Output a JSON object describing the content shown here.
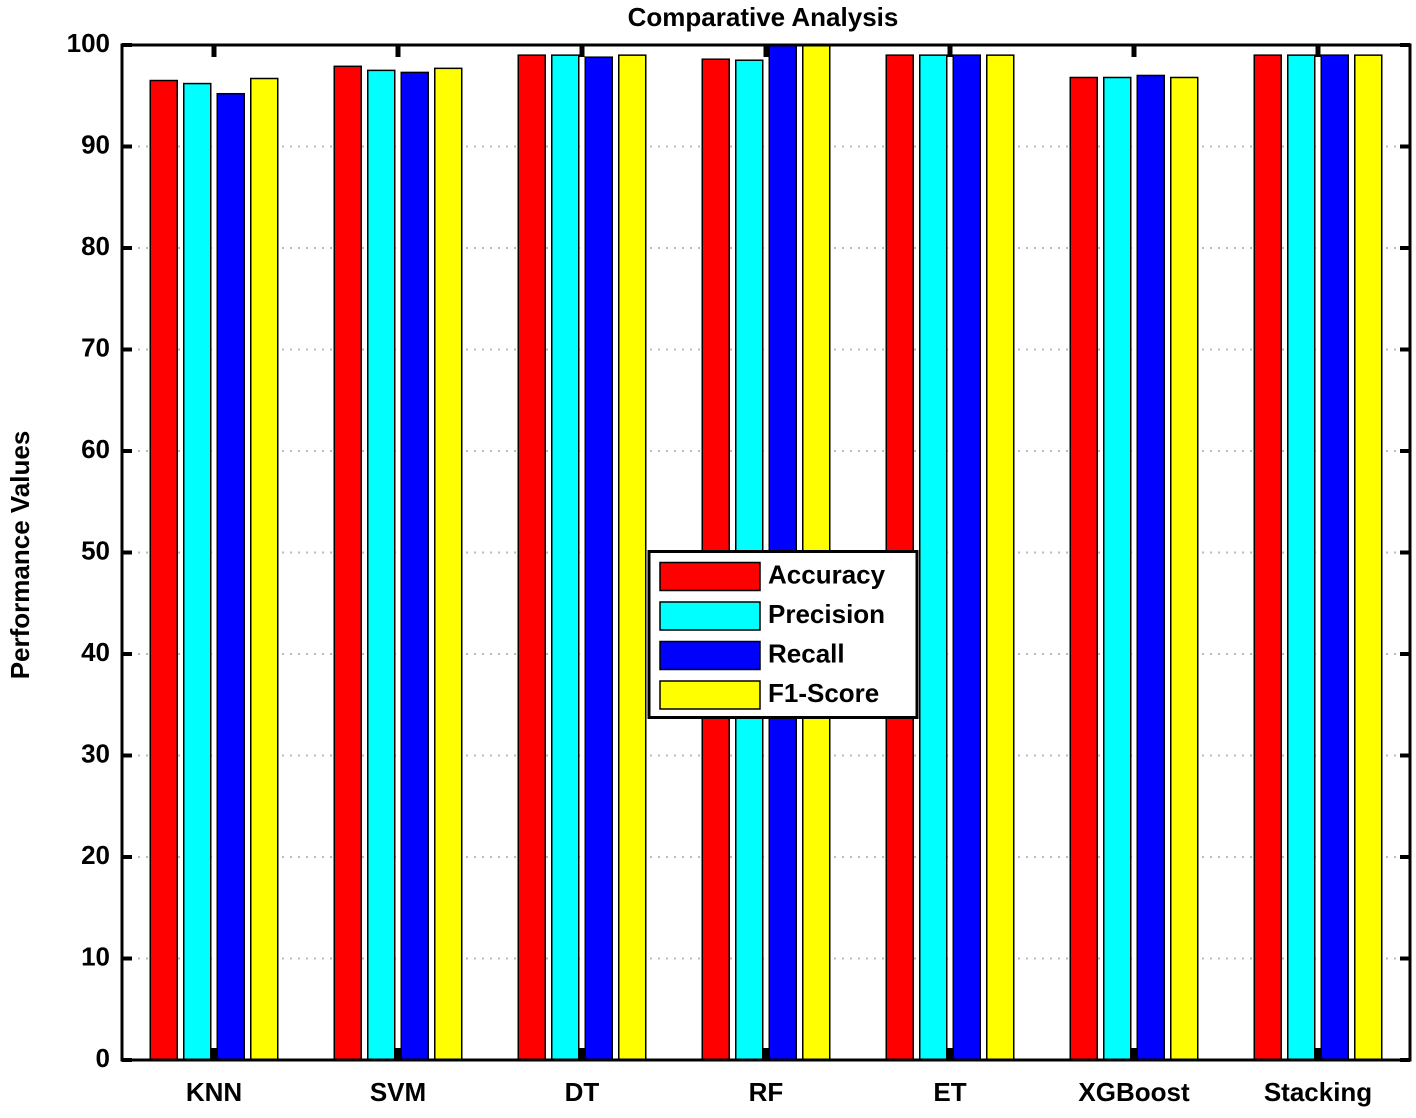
{
  "chart_data": {
    "type": "bar",
    "title": "Comparative Analysis",
    "y_label": "Performance Values",
    "categories": [
      "KNN",
      "SVM",
      "DT",
      "RF",
      "ET",
      "XGBoost",
      "Stacking"
    ],
    "series": [
      {
        "name": "Accuracy",
        "color": "#ff0000",
        "values": [
          96.5,
          97.9,
          99.0,
          98.6,
          99.0,
          96.8,
          99.0
        ]
      },
      {
        "name": "Precision",
        "color": "#00ffff",
        "values": [
          96.2,
          97.5,
          99.0,
          98.5,
          99.0,
          96.8,
          99.0
        ]
      },
      {
        "name": "Recall",
        "color": "#0000ff",
        "values": [
          95.2,
          97.3,
          98.8,
          100,
          99.0,
          97.0,
          99.0
        ]
      },
      {
        "name": "F1-Score",
        "color": "#ffff00",
        "values": [
          96.7,
          97.7,
          99.0,
          100,
          99.0,
          96.8,
          99.0
        ]
      }
    ],
    "ylim": [
      0,
      100
    ],
    "yticks": [
      0,
      10,
      20,
      30,
      40,
      50,
      60,
      70,
      80,
      90,
      100
    ],
    "grid": true,
    "legend_position": "center"
  }
}
